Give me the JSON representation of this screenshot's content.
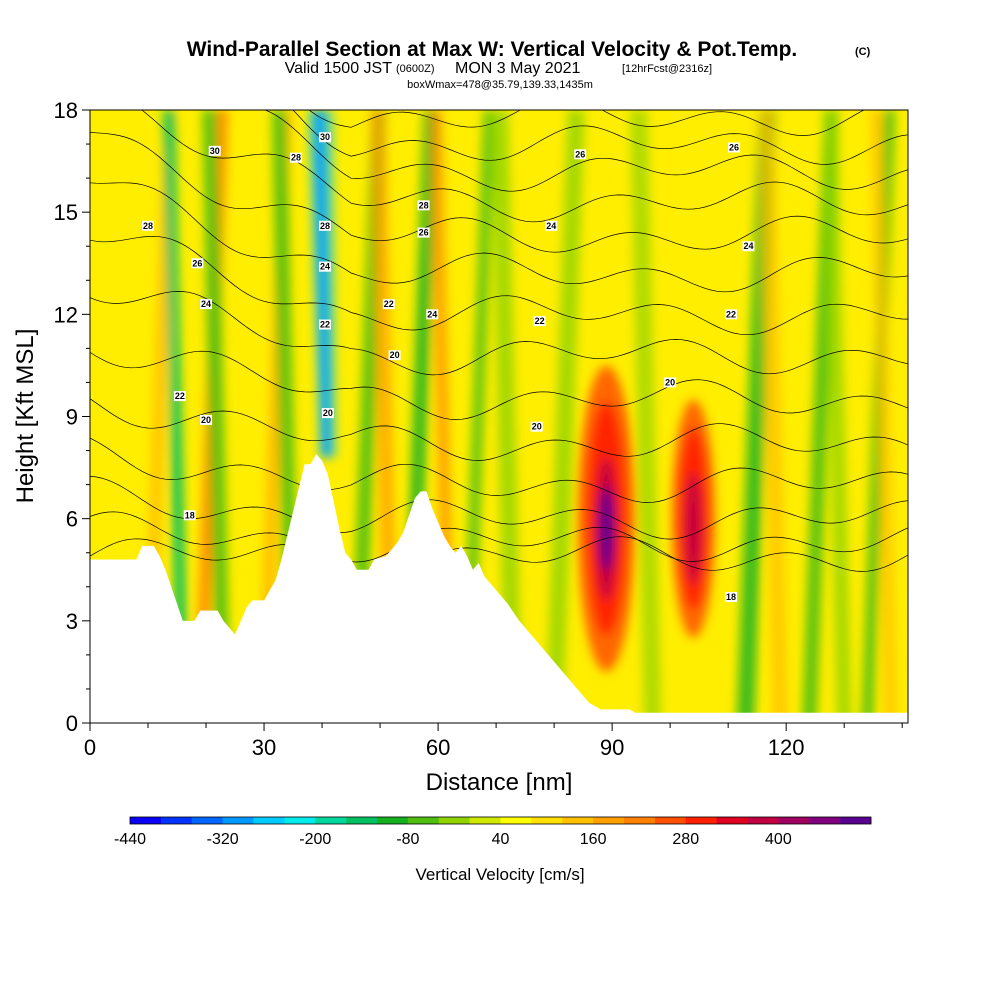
{
  "title": {
    "main": "Wind-Parallel Section at Max W: Vertical Velocity & Pot.Temp.",
    "copyright": "(C)",
    "valid_prefix": "Valid 1500 JST",
    "valid_utc": "(0600Z)",
    "valid_date": "MON 3 May 2021",
    "forecast": "[12hrFcst@2316z]",
    "boxwmax": "boxWmax=478@35.79,139.33,1435m"
  },
  "chart_data": {
    "type": "heatmap",
    "xlabel": "Distance [nm]",
    "ylabel": "Height [Kft MSL]",
    "xlim": [
      0,
      141
    ],
    "ylim": [
      0,
      18
    ],
    "x_ticks": [
      0,
      30,
      60,
      90,
      120
    ],
    "x_ticklabels": [
      "0",
      "30",
      "60",
      "90",
      "120"
    ],
    "y_ticks": [
      0,
      3,
      6,
      9,
      12,
      15,
      18
    ],
    "y_ticklabels": [
      "0",
      "3",
      "6",
      "9",
      "12",
      "15",
      "18"
    ],
    "colorbar": {
      "label": "Vertical Velocity [cm/s]",
      "min": -440,
      "max": 520,
      "step": 40,
      "ticks": [
        -440,
        -320,
        -200,
        -80,
        40,
        160,
        280,
        400
      ],
      "tick_labels": [
        "-440",
        "-320",
        "-200",
        "-80",
        "40",
        "160",
        "280",
        "400"
      ],
      "colors": [
        "#0a00f5",
        "#0033ff",
        "#0066ff",
        "#0099ff",
        "#00ccff",
        "#00ecec",
        "#00d8a0",
        "#00c060",
        "#14b020",
        "#50bf10",
        "#90d300",
        "#d0e800",
        "#ffff00",
        "#ffe000",
        "#ffc000",
        "#ffa000",
        "#ff8000",
        "#ff5000",
        "#ff2000",
        "#e00020",
        "#c00040",
        "#a00060",
        "#800080",
        "#5a0090"
      ]
    },
    "terrain_kft": [
      [
        0,
        4.8
      ],
      [
        8,
        4.8
      ],
      [
        9,
        5.2
      ],
      [
        11,
        5.2
      ],
      [
        12,
        4.9
      ],
      [
        13,
        4.5
      ],
      [
        14,
        4.0
      ],
      [
        15,
        3.5
      ],
      [
        16,
        3.0
      ],
      [
        18,
        3.0
      ],
      [
        19,
        3.3
      ],
      [
        22,
        3.3
      ],
      [
        23,
        3.0
      ],
      [
        25,
        2.6
      ],
      [
        26,
        3.0
      ],
      [
        27,
        3.4
      ],
      [
        28,
        3.6
      ],
      [
        30,
        3.6
      ],
      [
        31,
        3.9
      ],
      [
        32,
        4.2
      ],
      [
        33,
        4.8
      ],
      [
        34,
        5.5
      ],
      [
        35,
        6.2
      ],
      [
        36,
        6.9
      ],
      [
        37,
        7.6
      ],
      [
        38,
        7.6
      ],
      [
        39,
        7.9
      ],
      [
        40,
        7.7
      ],
      [
        41,
        7.3
      ],
      [
        42,
        6.5
      ],
      [
        43,
        5.7
      ],
      [
        44,
        5.0
      ],
      [
        45,
        4.8
      ],
      [
        46,
        4.5
      ],
      [
        48,
        4.5
      ],
      [
        49,
        4.8
      ],
      [
        51,
        4.9
      ],
      [
        52,
        5.1
      ],
      [
        53,
        5.3
      ],
      [
        54,
        5.6
      ],
      [
        55,
        6.1
      ],
      [
        56,
        6.6
      ],
      [
        57,
        6.8
      ],
      [
        58,
        6.8
      ],
      [
        59,
        6.3
      ],
      [
        60,
        5.9
      ],
      [
        61,
        5.5
      ],
      [
        62,
        5.2
      ],
      [
        63,
        5.0
      ],
      [
        64,
        5.2
      ],
      [
        65,
        4.9
      ],
      [
        66,
        4.5
      ],
      [
        67,
        4.7
      ],
      [
        68,
        4.3
      ],
      [
        70,
        3.9
      ],
      [
        72,
        3.5
      ],
      [
        74,
        3.0
      ],
      [
        76,
        2.6
      ],
      [
        78,
        2.2
      ],
      [
        80,
        1.8
      ],
      [
        82,
        1.4
      ],
      [
        84,
        1.0
      ],
      [
        86,
        0.6
      ],
      [
        88,
        0.4
      ],
      [
        93,
        0.4
      ],
      [
        94,
        0.3
      ],
      [
        100,
        0.3
      ],
      [
        141,
        0.3
      ]
    ],
    "theta_contour_labels": [
      {
        "x": 21.5,
        "y": 16.8,
        "label": "30"
      },
      {
        "x": 35.5,
        "y": 16.6,
        "label": "28"
      },
      {
        "x": 40.5,
        "y": 17.2,
        "label": "30"
      },
      {
        "x": 10,
        "y": 14.6,
        "label": "28"
      },
      {
        "x": 40.5,
        "y": 14.6,
        "label": "28"
      },
      {
        "x": 57.5,
        "y": 15.2,
        "label": "28"
      },
      {
        "x": 84.5,
        "y": 16.7,
        "label": "26"
      },
      {
        "x": 111,
        "y": 16.9,
        "label": "26"
      },
      {
        "x": 18.5,
        "y": 13.5,
        "label": "26"
      },
      {
        "x": 57.5,
        "y": 14.4,
        "label": "26"
      },
      {
        "x": 79.5,
        "y": 14.6,
        "label": "24"
      },
      {
        "x": 113.5,
        "y": 14.0,
        "label": "24"
      },
      {
        "x": 20,
        "y": 12.3,
        "label": "24"
      },
      {
        "x": 40.5,
        "y": 13.4,
        "label": "24"
      },
      {
        "x": 59,
        "y": 12.0,
        "label": "24"
      },
      {
        "x": 77.5,
        "y": 11.8,
        "label": "22"
      },
      {
        "x": 51.5,
        "y": 12.3,
        "label": "22"
      },
      {
        "x": 110.5,
        "y": 12.0,
        "label": "22"
      },
      {
        "x": 40.5,
        "y": 11.7,
        "label": "22"
      },
      {
        "x": 52.5,
        "y": 10.8,
        "label": "20"
      },
      {
        "x": 15.5,
        "y": 9.6,
        "label": "22"
      },
      {
        "x": 20,
        "y": 8.9,
        "label": "20"
      },
      {
        "x": 41,
        "y": 9.1,
        "label": "20"
      },
      {
        "x": 77,
        "y": 8.7,
        "label": "20"
      },
      {
        "x": 100,
        "y": 10.0,
        "label": "20"
      },
      {
        "x": 17.2,
        "y": 6.1,
        "label": "18"
      },
      {
        "x": 110.5,
        "y": 3.7,
        "label": "18"
      }
    ]
  }
}
